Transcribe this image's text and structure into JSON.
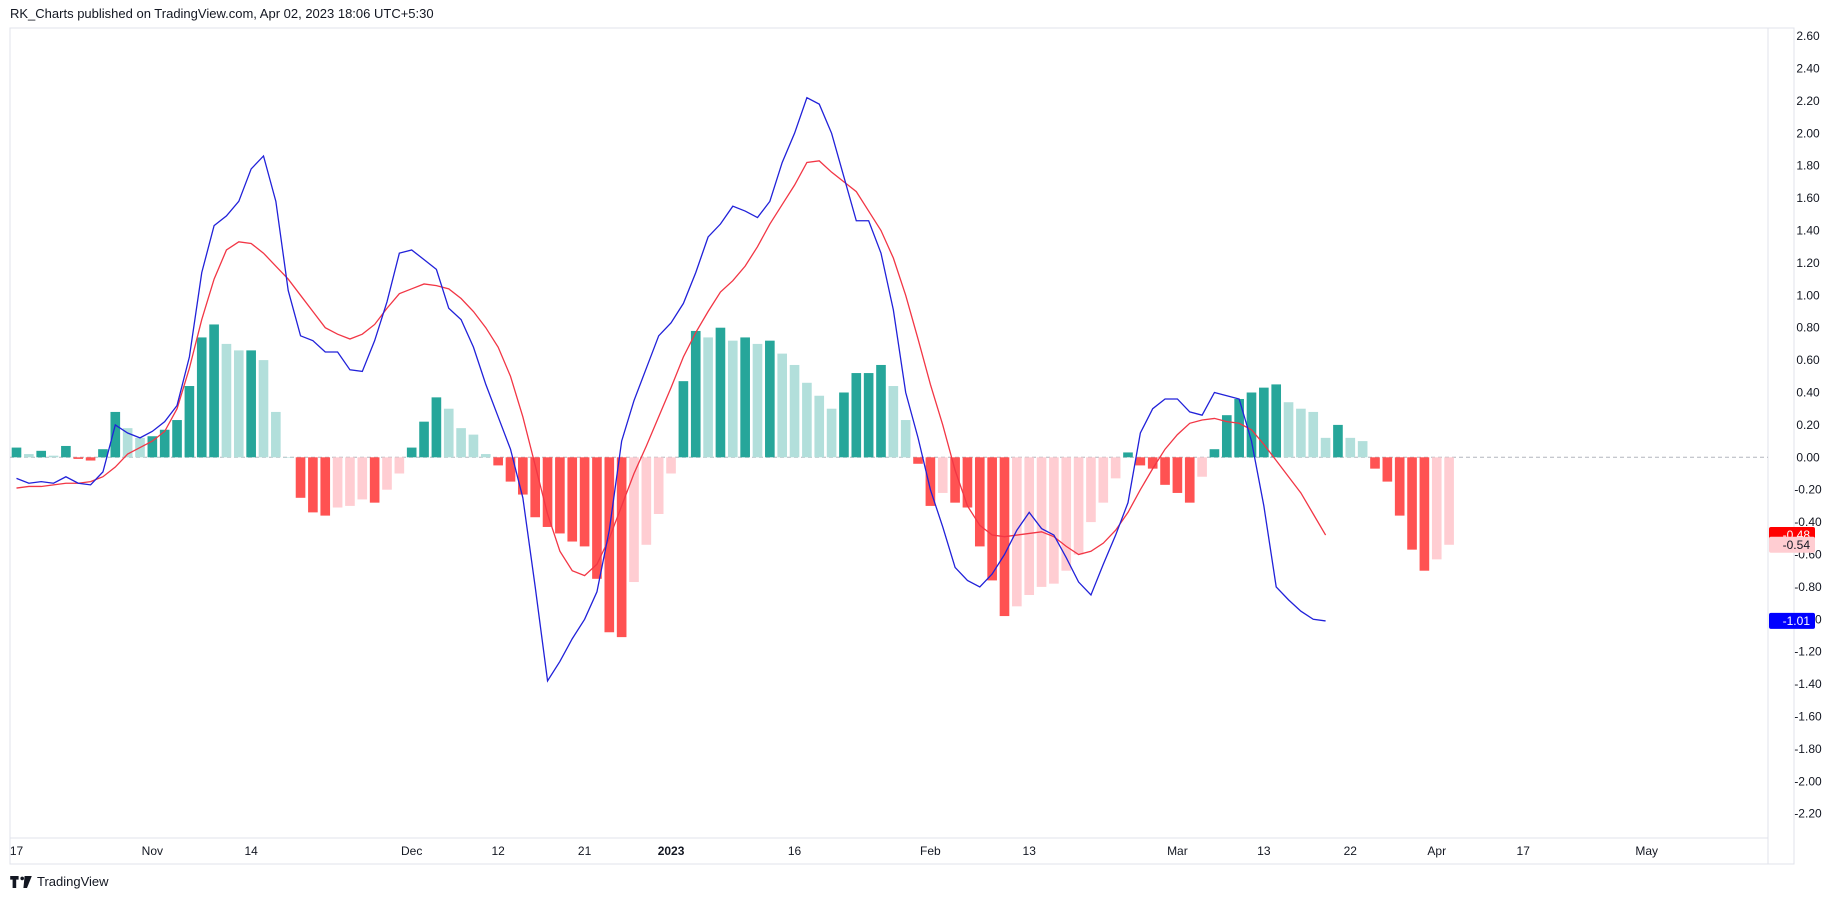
{
  "header": {
    "text": "RK_Charts published on TradingView.com, Apr 02, 2023 18:06 UTC+5:30"
  },
  "footer": {
    "brand": "TradingView"
  },
  "colors": {
    "hist_pos_strong": "#26a69a",
    "hist_pos_weak": "#b2dfdb",
    "hist_neg_strong": "#ff5252",
    "hist_neg_weak": "#ffcdd2",
    "macd_line": "#2121d9",
    "signal_line": "#f23645",
    "zero_line": "#b2b5be",
    "border": "#e0e3eb"
  },
  "chart_data": {
    "type": "macd",
    "title": "",
    "ylim": [
      -2.35,
      2.65
    ],
    "y_ticks": [
      "2.60",
      "2.40",
      "2.20",
      "2.00",
      "1.80",
      "1.60",
      "1.40",
      "1.20",
      "1.00",
      "0.80",
      "0.60",
      "0.40",
      "0.20",
      "0.00",
      "-0.20",
      "-0.40",
      "-0.60",
      "-0.80",
      "-1.00",
      "-1.20",
      "-1.40",
      "-1.60",
      "-1.80",
      "-2.00",
      "-2.20"
    ],
    "x_ticks": [
      {
        "label": "17",
        "index": 0,
        "bold": false
      },
      {
        "label": "Nov",
        "index": 11,
        "bold": false
      },
      {
        "label": "14",
        "index": 19,
        "bold": false
      },
      {
        "label": "Dec",
        "index": 32,
        "bold": false
      },
      {
        "label": "12",
        "index": 39,
        "bold": false
      },
      {
        "label": "21",
        "index": 46,
        "bold": false
      },
      {
        "label": "2023",
        "index": 53,
        "bold": true
      },
      {
        "label": "16",
        "index": 63,
        "bold": false
      },
      {
        "label": "Feb",
        "index": 74,
        "bold": false
      },
      {
        "label": "13",
        "index": 82,
        "bold": false
      },
      {
        "label": "Mar",
        "index": 94,
        "bold": false
      },
      {
        "label": "13",
        "index": 101,
        "bold": false
      },
      {
        "label": "22",
        "index": 108,
        "bold": false
      },
      {
        "label": "Apr",
        "index": 115,
        "bold": false
      },
      {
        "label": "17",
        "index": 122,
        "bold": false
      },
      {
        "label": "May",
        "index": 132,
        "bold": false
      }
    ],
    "histogram": [
      0.06,
      0.02,
      0.04,
      0.01,
      0.07,
      -0.01,
      -0.02,
      0.05,
      0.28,
      0.18,
      0.12,
      0.13,
      0.17,
      0.23,
      0.44,
      0.74,
      0.82,
      0.7,
      0.66,
      0.66,
      0.6,
      0.28,
      0.0,
      -0.25,
      -0.34,
      -0.36,
      -0.31,
      -0.3,
      -0.26,
      -0.28,
      -0.2,
      -0.1,
      0.06,
      0.22,
      0.37,
      0.3,
      0.18,
      0.14,
      0.02,
      -0.05,
      -0.15,
      -0.23,
      -0.37,
      -0.43,
      -0.47,
      -0.52,
      -0.55,
      -0.75,
      -1.08,
      -1.11,
      -0.77,
      -0.54,
      -0.35,
      -0.1,
      0.47,
      0.78,
      0.74,
      0.8,
      0.72,
      0.74,
      0.7,
      0.72,
      0.64,
      0.57,
      0.46,
      0.38,
      0.3,
      0.4,
      0.52,
      0.52,
      0.57,
      0.44,
      0.23,
      -0.04,
      -0.3,
      -0.22,
      -0.28,
      -0.31,
      -0.55,
      -0.76,
      -0.98,
      -0.92,
      -0.85,
      -0.8,
      -0.78,
      -0.7,
      -0.6,
      -0.4,
      -0.28,
      -0.13,
      0.03,
      -0.05,
      -0.07,
      -0.17,
      -0.22,
      -0.28,
      -0.12,
      0.05,
      0.26,
      0.36,
      0.4,
      0.43,
      0.45,
      0.34,
      0.3,
      0.28,
      0.12,
      0.2,
      0.12,
      0.1,
      -0.07,
      -0.15,
      -0.36,
      -0.57,
      -0.7,
      -0.63,
      -0.54
    ],
    "macd": [
      -0.13,
      -0.16,
      -0.15,
      -0.16,
      -0.12,
      -0.16,
      -0.17,
      -0.09,
      0.2,
      0.15,
      0.12,
      0.16,
      0.22,
      0.32,
      0.62,
      1.14,
      1.43,
      1.49,
      1.58,
      1.78,
      1.86,
      1.58,
      1.03,
      0.75,
      0.72,
      0.65,
      0.65,
      0.54,
      0.53,
      0.72,
      0.96,
      1.26,
      1.28,
      1.22,
      1.16,
      0.92,
      0.85,
      0.68,
      0.45,
      0.25,
      0.05,
      -0.25,
      -0.8,
      -1.38,
      -1.26,
      -1.12,
      -1.0,
      -0.83,
      -0.45,
      0.1,
      0.35,
      0.55,
      0.75,
      0.83,
      0.95,
      1.14,
      1.36,
      1.44,
      1.55,
      1.52,
      1.48,
      1.58,
      1.82,
      2.0,
      2.22,
      2.18,
      2.0,
      1.73,
      1.46,
      1.46,
      1.26,
      0.91,
      0.4,
      0.12,
      -0.2,
      -0.43,
      -0.68,
      -0.76,
      -0.8,
      -0.72,
      -0.6,
      -0.45,
      -0.34,
      -0.44,
      -0.48,
      -0.62,
      -0.77,
      -0.85,
      -0.66,
      -0.48,
      -0.28,
      0.15,
      0.3,
      0.36,
      0.36,
      0.28,
      0.26,
      0.4,
      0.38,
      0.36,
      0.1,
      -0.3,
      -0.8,
      -0.88,
      -0.95,
      -1.0,
      -1.01
    ],
    "signal": [
      -0.19,
      -0.18,
      -0.18,
      -0.17,
      -0.16,
      -0.16,
      -0.15,
      -0.12,
      -0.06,
      0.02,
      0.06,
      0.1,
      0.16,
      0.3,
      0.55,
      0.85,
      1.1,
      1.28,
      1.33,
      1.32,
      1.26,
      1.18,
      1.1,
      1.0,
      0.9,
      0.8,
      0.76,
      0.73,
      0.76,
      0.82,
      0.92,
      1.01,
      1.04,
      1.07,
      1.06,
      1.04,
      0.98,
      0.9,
      0.8,
      0.68,
      0.5,
      0.25,
      -0.05,
      -0.35,
      -0.58,
      -0.7,
      -0.73,
      -0.66,
      -0.5,
      -0.3,
      -0.1,
      0.07,
      0.25,
      0.43,
      0.62,
      0.77,
      0.9,
      1.02,
      1.09,
      1.18,
      1.3,
      1.44,
      1.56,
      1.68,
      1.82,
      1.83,
      1.76,
      1.7,
      1.64,
      1.52,
      1.4,
      1.23,
      1.0,
      0.73,
      0.45,
      0.2,
      -0.08,
      -0.3,
      -0.42,
      -0.48,
      -0.49,
      -0.48,
      -0.47,
      -0.46,
      -0.49,
      -0.55,
      -0.6,
      -0.58,
      -0.53,
      -0.45,
      -0.34,
      -0.2,
      -0.07,
      0.05,
      0.14,
      0.21,
      0.23,
      0.24,
      0.22,
      0.21,
      0.17,
      0.08,
      -0.02,
      -0.12,
      -0.22,
      -0.35,
      -0.48
    ],
    "last_values": [
      {
        "label": "-0.48",
        "value": -0.48,
        "color": "#ff0000",
        "text_dark": false
      },
      {
        "label": "-0.54",
        "value": -0.54,
        "color": "#ffcdd2",
        "text_dark": true
      },
      {
        "label": "-1.01",
        "value": -1.01,
        "color": "#0000ff",
        "text_dark": false
      }
    ]
  }
}
